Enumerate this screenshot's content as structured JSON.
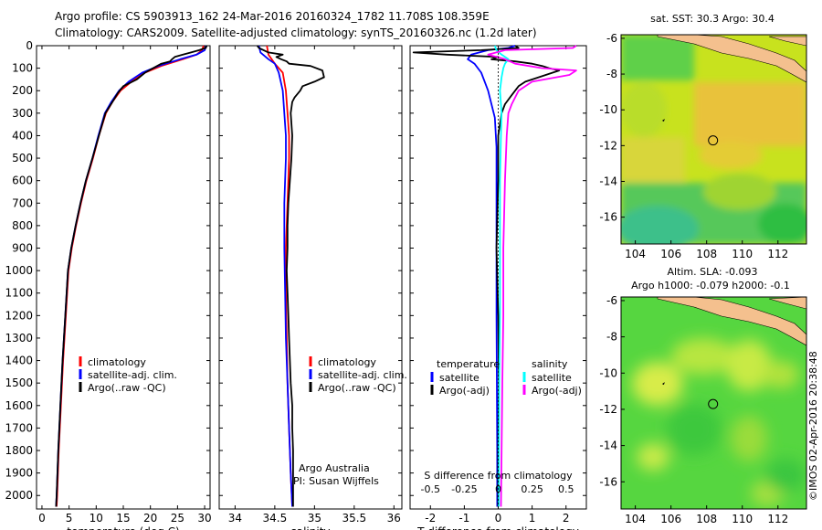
{
  "header": {
    "line1": "Argo profile: CS 5903913_162 24-Mar-2016 20160324_1782 11.708S 108.359E",
    "line2": "Climatology: CARS2009. Satellite-adjusted climatology: synTS_20160326.nc (1.2d later)"
  },
  "colors": {
    "climatology": "#ff0000",
    "satellite": "#0000ff",
    "argo": "#000000",
    "sat_salinity": "#00ffff",
    "argo_salinity": "#ff00ff",
    "land": "#f4c08e"
  },
  "chart_data": [
    {
      "type": "line",
      "id": "temperature",
      "xlabel": "temperature (deg C)",
      "xlim": [
        -1,
        31
      ],
      "xticks": [
        0,
        5,
        10,
        15,
        20,
        25,
        30
      ],
      "ylim": [
        2060,
        0
      ],
      "yticks": [
        0,
        100,
        200,
        300,
        400,
        500,
        600,
        700,
        800,
        900,
        1000,
        1100,
        1200,
        1300,
        1400,
        1500,
        1600,
        1700,
        1800,
        1900,
        2000
      ],
      "legend": [
        "climatology",
        "satellite-adj. clim.",
        "Argo(..raw -QC)"
      ],
      "legend_colors": [
        "#ff0000",
        "#0000ff",
        "#000000"
      ],
      "series": [
        {
          "name": "climatology",
          "color": "#ff0000",
          "points": [
            [
              29.8,
              0
            ],
            [
              29.5,
              20
            ],
            [
              28.5,
              40
            ],
            [
              26,
              60
            ],
            [
              22,
              90
            ],
            [
              19,
              120
            ],
            [
              16.5,
              160
            ],
            [
              14.5,
              200
            ],
            [
              13,
              250
            ],
            [
              11.8,
              300
            ],
            [
              10.5,
              400
            ],
            [
              9.4,
              500
            ],
            [
              8.2,
              600
            ],
            [
              7.2,
              700
            ],
            [
              6.3,
              800
            ],
            [
              5.5,
              900
            ],
            [
              4.9,
              1000
            ],
            [
              4.4,
              1200
            ],
            [
              3.9,
              1400
            ],
            [
              3.5,
              1600
            ],
            [
              3.1,
              1800
            ],
            [
              2.8,
              2000
            ],
            [
              2.7,
              2050
            ]
          ]
        },
        {
          "name": "satellite-adj. clim.",
          "color": "#0000ff",
          "points": [
            [
              30.3,
              0
            ],
            [
              30,
              20
            ],
            [
              28.5,
              40
            ],
            [
              25.5,
              60
            ],
            [
              21.5,
              90
            ],
            [
              18.5,
              120
            ],
            [
              16,
              160
            ],
            [
              14.2,
              200
            ],
            [
              12.8,
              250
            ],
            [
              11.6,
              300
            ],
            [
              10.4,
              400
            ],
            [
              9.3,
              500
            ],
            [
              8.1,
              600
            ],
            [
              7.1,
              700
            ],
            [
              6.2,
              800
            ],
            [
              5.4,
              900
            ],
            [
              4.8,
              1000
            ],
            [
              4.3,
              1200
            ],
            [
              3.8,
              1400
            ],
            [
              3.4,
              1600
            ],
            [
              3.0,
              1800
            ],
            [
              2.7,
              2000
            ],
            [
              2.6,
              2050
            ]
          ]
        },
        {
          "name": "Argo(..raw -QC)",
          "color": "#000000",
          "points": [
            [
              30.4,
              0
            ],
            [
              30.2,
              10
            ],
            [
              29,
              20
            ],
            [
              27.5,
              30
            ],
            [
              26,
              40
            ],
            [
              24.5,
              50
            ],
            [
              24,
              60
            ],
            [
              23.6,
              70
            ],
            [
              22,
              80
            ],
            [
              20.5,
              100
            ],
            [
              19,
              120
            ],
            [
              17.5,
              150
            ],
            [
              15,
              180
            ],
            [
              14,
              210
            ],
            [
              13,
              250
            ],
            [
              11.7,
              300
            ],
            [
              10.5,
              400
            ],
            [
              9.3,
              500
            ],
            [
              8.1,
              600
            ],
            [
              7.1,
              700
            ],
            [
              6.2,
              800
            ],
            [
              5.4,
              900
            ],
            [
              4.8,
              1000
            ],
            [
              4.3,
              1200
            ],
            [
              3.8,
              1400
            ],
            [
              3.4,
              1600
            ],
            [
              3.0,
              1800
            ],
            [
              2.7,
              2000
            ],
            [
              2.6,
              2050
            ]
          ]
        }
      ]
    },
    {
      "type": "line",
      "id": "salinity",
      "xlabel": "salinity",
      "xlim": [
        33.8,
        36.1
      ],
      "xticks": [
        34,
        34.5,
        35,
        35.5,
        36
      ],
      "ylim": [
        2060,
        0
      ],
      "legend": [
        "climatology",
        "satellite-adj. clim.",
        "Argo(..raw -QC)"
      ],
      "legend_colors": [
        "#ff0000",
        "#0000ff",
        "#000000"
      ],
      "annotations": [
        "Argo Australia",
        "PI: Susan Wijffels"
      ],
      "series": [
        {
          "name": "climatology",
          "color": "#ff0000",
          "points": [
            [
              34.4,
              0
            ],
            [
              34.42,
              40
            ],
            [
              34.5,
              80
            ],
            [
              34.6,
              120
            ],
            [
              34.64,
              200
            ],
            [
              34.66,
              300
            ],
            [
              34.68,
              400
            ],
            [
              34.68,
              500
            ],
            [
              34.66,
              700
            ],
            [
              34.64,
              900
            ],
            [
              34.64,
              1100
            ],
            [
              34.65,
              1300
            ],
            [
              34.66,
              1500
            ],
            [
              34.68,
              1700
            ],
            [
              34.7,
              1900
            ],
            [
              34.72,
              2050
            ]
          ]
        },
        {
          "name": "satellite-adj. clim.",
          "color": "#0000ff",
          "points": [
            [
              34.3,
              0
            ],
            [
              34.32,
              30
            ],
            [
              34.42,
              60
            ],
            [
              34.5,
              80
            ],
            [
              34.55,
              120
            ],
            [
              34.6,
              200
            ],
            [
              34.62,
              300
            ],
            [
              34.64,
              400
            ],
            [
              34.64,
              500
            ],
            [
              34.62,
              700
            ],
            [
              34.62,
              900
            ],
            [
              34.63,
              1100
            ],
            [
              34.64,
              1300
            ],
            [
              34.66,
              1500
            ],
            [
              34.68,
              1700
            ],
            [
              34.7,
              1900
            ],
            [
              34.72,
              2050
            ]
          ]
        },
        {
          "name": "Argo(..raw -QC)",
          "color": "#000000",
          "points": [
            [
              34.28,
              0
            ],
            [
              34.3,
              10
            ],
            [
              34.42,
              30
            ],
            [
              34.6,
              40
            ],
            [
              34.52,
              50
            ],
            [
              34.58,
              60
            ],
            [
              34.65,
              70
            ],
            [
              34.68,
              80
            ],
            [
              34.95,
              90
            ],
            [
              35.1,
              110
            ],
            [
              35.12,
              140
            ],
            [
              35.0,
              160
            ],
            [
              34.85,
              180
            ],
            [
              34.82,
              200
            ],
            [
              34.75,
              230
            ],
            [
              34.72,
              250
            ],
            [
              34.7,
              300
            ],
            [
              34.72,
              400
            ],
            [
              34.71,
              500
            ],
            [
              34.69,
              600
            ],
            [
              34.67,
              700
            ],
            [
              34.66,
              800
            ],
            [
              34.66,
              900
            ],
            [
              34.65,
              1000
            ],
            [
              34.66,
              1100
            ],
            [
              34.67,
              1200
            ],
            [
              34.68,
              1300
            ],
            [
              34.69,
              1400
            ],
            [
              34.7,
              1500
            ],
            [
              34.72,
              1600
            ],
            [
              34.72,
              1700
            ],
            [
              34.73,
              1800
            ],
            [
              34.73,
              1900
            ],
            [
              34.73,
              2050
            ]
          ]
        }
      ]
    },
    {
      "type": "line",
      "id": "difference",
      "xlabel": "T difference from climatology",
      "xlabel_top": "S difference from climatology",
      "xlim": [
        -2.6,
        2.6
      ],
      "xticks": [
        -2,
        -1,
        0,
        1,
        2
      ],
      "top_ticks": [
        [
          "-0.5",
          -2.0
        ],
        [
          "-0.25",
          -1.0
        ],
        [
          "0",
          0
        ],
        [
          "0.25",
          1.0
        ],
        [
          "0.5",
          2.0
        ]
      ],
      "ylim": [
        2060,
        0
      ],
      "legend_titles": [
        "temperature",
        "salinity"
      ],
      "legend": [
        "satellite",
        "Argo(-adj)",
        "satellite",
        "Argo(-adj)"
      ],
      "legend_colors": [
        "#0000ff",
        "#000000",
        "#00ffff",
        "#ff00ff"
      ],
      "series": [
        {
          "name": "T satellite",
          "color": "#0000ff",
          "points": [
            [
              0.5,
              0
            ],
            [
              0.3,
              10
            ],
            [
              -0.3,
              20
            ],
            [
              -0.8,
              40
            ],
            [
              -0.9,
              60
            ],
            [
              -0.7,
              80
            ],
            [
              -0.5,
              120
            ],
            [
              -0.4,
              160
            ],
            [
              -0.3,
              200
            ],
            [
              -0.2,
              260
            ],
            [
              -0.1,
              320
            ],
            [
              -0.05,
              450
            ],
            [
              -0.05,
              700
            ],
            [
              -0.05,
              1200
            ],
            [
              -0.03,
              1800
            ],
            [
              -0.03,
              2050
            ]
          ]
        },
        {
          "name": "T Argo(-adj)",
          "color": "#000000",
          "points": [
            [
              0.5,
              0
            ],
            [
              0.6,
              10
            ],
            [
              -0.5,
              20
            ],
            [
              -2.5,
              30
            ],
            [
              -1.5,
              40
            ],
            [
              0.0,
              50
            ],
            [
              -0.2,
              60
            ],
            [
              0.5,
              70
            ],
            [
              1.0,
              80
            ],
            [
              1.3,
              90
            ],
            [
              1.5,
              100
            ],
            [
              1.8,
              110
            ],
            [
              1.2,
              140
            ],
            [
              0.8,
              160
            ],
            [
              0.6,
              180
            ],
            [
              0.4,
              220
            ],
            [
              0.2,
              260
            ],
            [
              0.1,
              300
            ],
            [
              0.0,
              400
            ],
            [
              0.0,
              600
            ],
            [
              -0.05,
              900
            ],
            [
              0.0,
              1200
            ],
            [
              0.02,
              1500
            ],
            [
              0.0,
              1800
            ],
            [
              0.0,
              2050
            ]
          ]
        },
        {
          "name": "S satellite",
          "color": "#00ffff",
          "points": [
            [
              -0.1,
              0
            ],
            [
              -0.05,
              20
            ],
            [
              0.1,
              40
            ],
            [
              0.3,
              60
            ],
            [
              0.2,
              80
            ],
            [
              0.15,
              100
            ],
            [
              0.1,
              140
            ],
            [
              0.05,
              200
            ],
            [
              0.1,
              300
            ],
            [
              0.08,
              400
            ],
            [
              0.05,
              600
            ],
            [
              0.05,
              900
            ],
            [
              0.05,
              1200
            ],
            [
              0.03,
              1500
            ],
            [
              0.02,
              1800
            ],
            [
              0.02,
              2050
            ]
          ]
        },
        {
          "name": "S Argo(-adj)",
          "color": "#ff00ff",
          "points": [
            [
              2.3,
              0
            ],
            [
              2.2,
              10
            ],
            [
              0.2,
              20
            ],
            [
              -0.3,
              40
            ],
            [
              0.2,
              60
            ],
            [
              0.5,
              80
            ],
            [
              1.3,
              100
            ],
            [
              2.3,
              110
            ],
            [
              2.1,
              130
            ],
            [
              1.0,
              160
            ],
            [
              0.6,
              200
            ],
            [
              0.4,
              260
            ],
            [
              0.3,
              300
            ],
            [
              0.25,
              400
            ],
            [
              0.2,
              600
            ],
            [
              0.15,
              900
            ],
            [
              0.15,
              1200
            ],
            [
              0.12,
              1500
            ],
            [
              0.1,
              1800
            ],
            [
              0.08,
              2050
            ]
          ]
        }
      ]
    },
    {
      "type": "heatmap",
      "id": "sst_map",
      "title": "sat. SST: 30.3 Argo: 30.4",
      "xlim": [
        103.2,
        113.6
      ],
      "ylim": [
        -17.5,
        -5.8
      ],
      "xticks": [
        104,
        106,
        108,
        110,
        112
      ],
      "yticks": [
        -6,
        -8,
        -10,
        -12,
        -14,
        -16
      ],
      "argo_position": {
        "lon": 108.359,
        "lat": -11.708
      }
    },
    {
      "type": "heatmap",
      "id": "sla_map",
      "title": "Altim. SLA: -0.093",
      "subtitle": "Argo h1000: -0.079 h2000: -0.1",
      "xlim": [
        103.2,
        113.6
      ],
      "ylim": [
        -17.5,
        -5.8
      ],
      "xticks": [
        104,
        106,
        108,
        110,
        112
      ],
      "yticks": [
        -6,
        -8,
        -10,
        -12,
        -14,
        -16
      ],
      "argo_position": {
        "lon": 108.359,
        "lat": -11.708
      }
    }
  ],
  "credit": "©IMOS 02-Apr-2016 20:38:48"
}
